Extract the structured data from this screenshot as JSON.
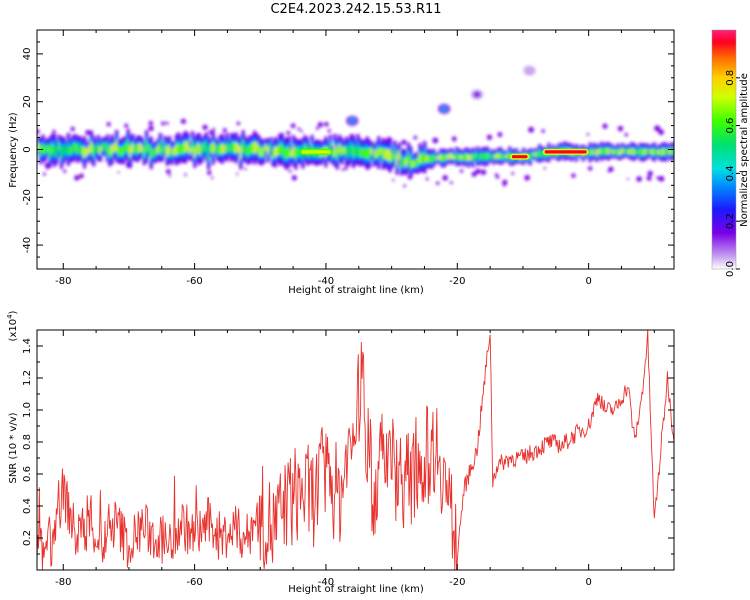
{
  "title": "C2E4.2023.242.15.53.R11",
  "colors": {
    "line": "#e8322e",
    "axis": "#000000",
    "background": "#ffffff"
  },
  "chart_data": [
    {
      "type": "heatmap",
      "xlabel": "Height of straight line (km)",
      "ylabel": "Frequency (Hz)",
      "xlim": [
        -84,
        13
      ],
      "ylim": [
        -50,
        50
      ],
      "xticks": [
        "-80",
        "-60",
        "-40",
        "-20",
        "0"
      ],
      "yticks": [
        "-40",
        "-20",
        "0",
        "20",
        "40"
      ],
      "colorbar": {
        "label": "Normalized spectral amplitude",
        "range": [
          0,
          1
        ],
        "ticks": [
          "0.0",
          "0.2",
          "0.4",
          "0.6",
          "0.8"
        ]
      },
      "band_center_frequency": [
        [
          -84,
          0
        ],
        [
          -70,
          0
        ],
        [
          -50,
          0
        ],
        [
          -45,
          -1
        ],
        [
          -35,
          -1
        ],
        [
          -30,
          -3
        ],
        [
          -27,
          -5
        ],
        [
          -22,
          -3
        ],
        [
          -15,
          -3
        ],
        [
          -10,
          -3
        ],
        [
          -5,
          -1
        ],
        [
          0,
          -1
        ],
        [
          5,
          -1
        ],
        [
          12,
          -1
        ]
      ],
      "bright_segments": [
        {
          "x": [
            -7,
            0
          ],
          "freq": -1,
          "amplitude": 0.95
        },
        {
          "x": [
            -12,
            -9
          ],
          "freq": -3,
          "amplitude": 0.9
        },
        {
          "x": [
            -44,
            -39
          ],
          "freq": -1,
          "amplitude": 0.7
        }
      ],
      "patches": [
        {
          "x": -22,
          "freq": 17,
          "amplitude": 0.35
        },
        {
          "x": -36,
          "freq": 12,
          "amplitude": 0.3
        },
        {
          "x": -17,
          "freq": 23,
          "amplitude": 0.1
        },
        {
          "x": -9,
          "freq": 33,
          "amplitude": 0.05
        }
      ]
    },
    {
      "type": "line",
      "xlabel": "Height of straight line (km)",
      "ylabel": "SNR (10 * v/v)",
      "y_multiplier": "(x10",
      "y_multiplier_exponent": "4",
      "y_multiplier_close": ")",
      "xlim": [
        -84,
        13
      ],
      "ylim": [
        0,
        1.5
      ],
      "xticks": [
        "-80",
        "-60",
        "-40",
        "-20",
        "0"
      ],
      "yticks": [
        "0.2",
        "0.4",
        "0.6",
        "0.8",
        "1.0",
        "1.2",
        "1.4"
      ],
      "series": [
        {
          "color": "#e8322e",
          "x": [
            -84,
            -82,
            -80,
            -78,
            -76,
            -74,
            -72,
            -70,
            -68,
            -66,
            -64,
            -62,
            -60,
            -58,
            -56,
            -54,
            -52,
            -50,
            -48,
            -46,
            -44,
            -42,
            -40,
            -38,
            -36,
            -34.5,
            -33,
            -31,
            -29,
            -27,
            -25,
            -23,
            -21,
            -20,
            -19,
            -17,
            -15,
            -14.6,
            -14,
            -12,
            -10,
            -8,
            -6,
            -4,
            -2,
            0,
            1.5,
            2.5,
            4,
            6,
            7,
            8,
            9,
            10,
            11,
            12,
            13
          ],
          "y": [
            0.1,
            0.15,
            0.5,
            0.2,
            0.3,
            0.15,
            0.3,
            0.15,
            0.28,
            0.2,
            0.15,
            0.3,
            0.2,
            0.3,
            0.2,
            0.25,
            0.2,
            0.35,
            0.25,
            0.4,
            0.5,
            0.45,
            0.6,
            0.45,
            0.8,
            1.2,
            0.45,
            0.75,
            0.6,
            0.55,
            0.7,
            0.8,
            0.35,
            0.1,
            0.5,
            0.75,
            1.5,
            0.55,
            0.65,
            0.7,
            0.7,
            0.75,
            0.8,
            0.78,
            0.85,
            0.9,
            1.1,
            1.0,
            1.0,
            1.15,
            0.8,
            1.05,
            1.45,
            0.3,
            0.75,
            1.2,
            0.8
          ]
        }
      ]
    }
  ]
}
